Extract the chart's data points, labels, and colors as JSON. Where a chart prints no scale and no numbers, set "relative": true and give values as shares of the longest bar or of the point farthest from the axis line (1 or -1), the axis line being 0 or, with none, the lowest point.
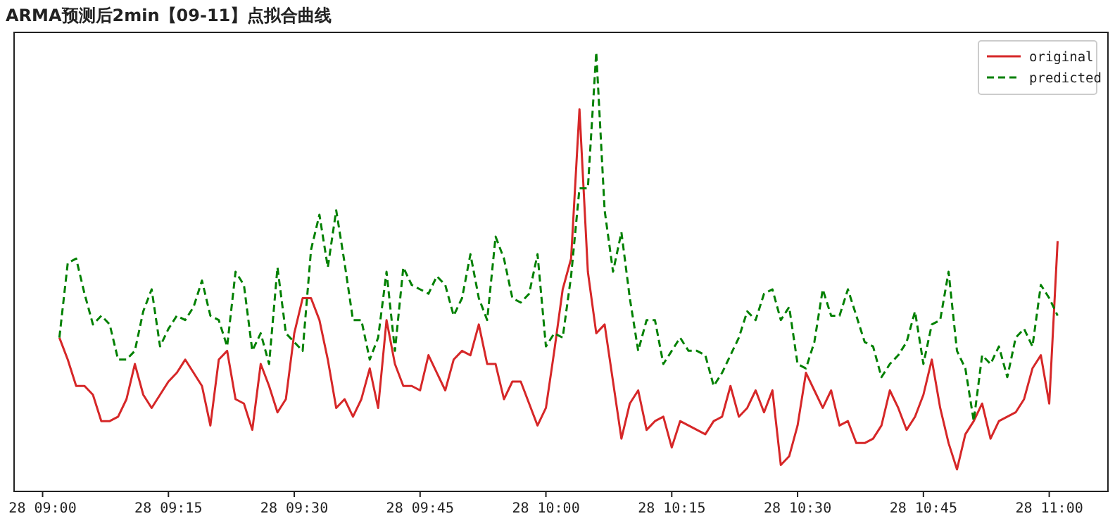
{
  "chart_data": {
    "type": "line",
    "title": "ARMA预测后2min【09-11】点拟合曲线",
    "relative": true,
    "legend": "top right",
    "categories": [
      "28 09:00",
      null,
      null,
      null,
      null,
      null,
      null,
      null,
      null,
      null,
      null,
      null,
      null,
      null,
      null,
      "28 09:15",
      null,
      null,
      null,
      null,
      null,
      null,
      null,
      null,
      null,
      null,
      null,
      null,
      null,
      null,
      "28 09:30",
      null,
      null,
      null,
      null,
      null,
      null,
      null,
      null,
      null,
      null,
      null,
      null,
      null,
      null,
      "28 09:45",
      null,
      null,
      null,
      null,
      null,
      null,
      null,
      null,
      null,
      null,
      null,
      null,
      null,
      null,
      "28 10:00",
      null,
      null,
      null,
      null,
      null,
      null,
      null,
      null,
      null,
      null,
      null,
      null,
      null,
      null,
      "28 10:15",
      null,
      null,
      null,
      null,
      null,
      null,
      null,
      null,
      null,
      null,
      null,
      null,
      null,
      null,
      "28 10:30",
      null,
      null,
      null,
      null,
      null,
      null,
      null,
      null,
      null,
      null,
      null,
      null,
      null,
      null,
      "28 10:45",
      null,
      null,
      null,
      null,
      null,
      null,
      null,
      null,
      null,
      null,
      null,
      null,
      null,
      null,
      "28 11:00",
      null
    ],
    "series": [
      {
        "name": "original",
        "color": "#d62728",
        "line_style": "solid",
        "values": [
          null,
          null,
          0.35,
          0.3,
          0.24,
          0.24,
          0.22,
          0.16,
          0.16,
          0.17,
          0.21,
          0.29,
          0.22,
          0.19,
          0.22,
          0.25,
          0.27,
          0.3,
          0.27,
          0.24,
          0.15,
          0.3,
          0.32,
          0.21,
          0.2,
          0.14,
          0.29,
          0.24,
          0.18,
          0.21,
          0.36,
          0.44,
          0.44,
          0.39,
          0.3,
          0.19,
          0.21,
          0.17,
          0.21,
          0.28,
          0.19,
          0.39,
          0.29,
          0.24,
          0.24,
          0.23,
          0.31,
          0.27,
          0.23,
          0.3,
          0.32,
          0.31,
          0.38,
          0.29,
          0.29,
          0.21,
          0.25,
          0.25,
          0.2,
          0.15,
          0.19,
          0.32,
          0.46,
          0.53,
          0.87,
          0.5,
          0.36,
          0.38,
          0.25,
          0.12,
          0.2,
          0.23,
          0.14,
          0.16,
          0.17,
          0.1,
          0.16,
          0.15,
          0.14,
          0.13,
          0.16,
          0.17,
          0.24,
          0.17,
          0.19,
          0.23,
          0.18,
          0.23,
          0.06,
          0.08,
          0.15,
          0.27,
          0.23,
          0.19,
          0.23,
          0.15,
          0.16,
          0.11,
          0.11,
          0.12,
          0.15,
          0.23,
          0.19,
          0.14,
          0.17,
          0.22,
          0.3,
          0.19,
          0.11,
          0.05,
          0.13,
          0.16,
          0.2,
          0.12,
          0.16,
          0.17,
          0.18,
          0.21,
          0.28,
          0.31,
          0.2,
          0.57
        ]
      },
      {
        "name": "predicted",
        "color": "#008000",
        "line_style": "dashed",
        "values": [
          null,
          null,
          0.35,
          0.52,
          0.53,
          0.45,
          0.38,
          0.4,
          0.38,
          0.3,
          0.3,
          0.32,
          0.41,
          0.46,
          0.33,
          0.37,
          0.4,
          0.39,
          0.42,
          0.48,
          0.4,
          0.39,
          0.33,
          0.5,
          0.47,
          0.32,
          0.36,
          0.29,
          0.51,
          0.36,
          0.34,
          0.32,
          0.55,
          0.63,
          0.51,
          0.64,
          0.52,
          0.39,
          0.39,
          0.3,
          0.35,
          0.5,
          0.32,
          0.51,
          0.47,
          0.46,
          0.45,
          0.49,
          0.47,
          0.4,
          0.44,
          0.54,
          0.44,
          0.39,
          0.58,
          0.53,
          0.44,
          0.43,
          0.45,
          0.54,
          0.33,
          0.36,
          0.35,
          0.49,
          0.69,
          0.69,
          1,
          0.64,
          0.5,
          0.59,
          0.44,
          0.32,
          0.39,
          0.39,
          0.29,
          0.32,
          0.35,
          0.32,
          0.32,
          0.31,
          0.24,
          0.27,
          0.31,
          0.35,
          0.41,
          0.39,
          0.45,
          0.46,
          0.39,
          0.42,
          0.29,
          0.28,
          0.34,
          0.46,
          0.4,
          0.4,
          0.46,
          0.4,
          0.34,
          0.33,
          0.26,
          0.29,
          0.31,
          0.34,
          0.41,
          0.29,
          0.38,
          0.39,
          0.5,
          0.32,
          0.28,
          0.16,
          0.31,
          0.29,
          0.33,
          0.26,
          0.35,
          0.37,
          0.33,
          0.47,
          0.44,
          0.4
        ]
      }
    ]
  }
}
